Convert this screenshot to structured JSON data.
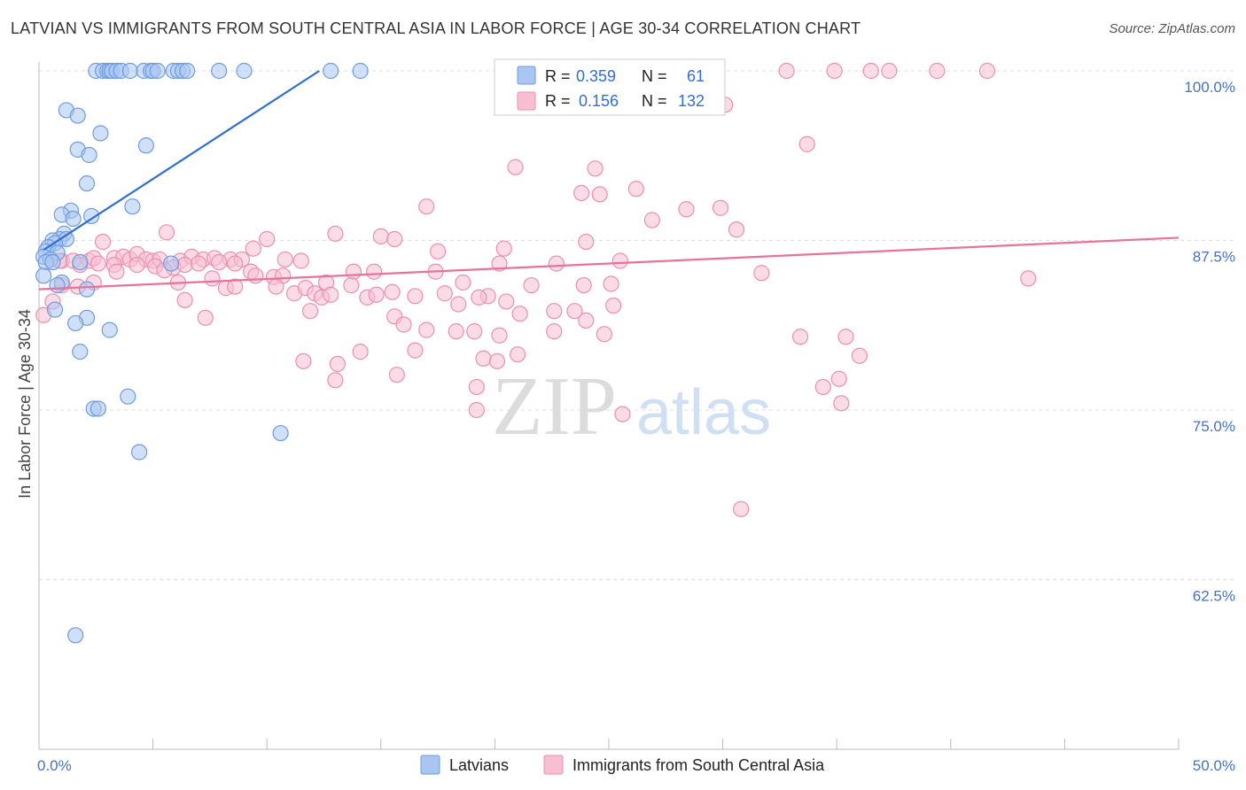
{
  "title": "LATVIAN VS IMMIGRANTS FROM SOUTH CENTRAL ASIA IN LABOR FORCE | AGE 30-34 CORRELATION CHART",
  "source": "Source: ZipAtlas.com",
  "watermark": {
    "zip": "ZIP",
    "atlas": "atlas"
  },
  "colors": {
    "blue_fill": "#a9c6f2",
    "blue_stroke": "#6f9be0",
    "blue_line": "#2e6fcf",
    "pink_fill": "#f7bfd1",
    "pink_stroke": "#ec8faf",
    "pink_line": "#e8729a",
    "tick_text": "#4472C4",
    "grid": "#dddddd"
  },
  "legend": {
    "rows": [
      {
        "r_label": "R =",
        "r_value": "0.359",
        "n_label": "N =",
        "n_value": "61"
      },
      {
        "r_label": "R =",
        "r_value": "0.156",
        "n_label": "N =",
        "n_value": "132"
      }
    ]
  },
  "bottom_legend": [
    "Latvians",
    "Immigrants from South Central Asia"
  ],
  "chart_data": {
    "type": "scatter",
    "title": "LATVIAN VS IMMIGRANTS FROM SOUTH CENTRAL ASIA IN LABOR FORCE | AGE 30-34 CORRELATION CHART",
    "xlabel": "",
    "ylabel": "In Labor Force | Age 30-34",
    "xlim": [
      0,
      50
    ],
    "ylim": [
      50,
      101
    ],
    "x_tick_labels": [
      "0.0%",
      "50.0%"
    ],
    "y_ticks": [
      62.5,
      75.0,
      87.5,
      100.0
    ],
    "y_tick_labels": [
      "62.5%",
      "75.0%",
      "87.5%",
      "100.0%"
    ],
    "grid": true,
    "series": [
      {
        "name": "Latvians",
        "R": 0.359,
        "N": 61,
        "trend": [
          [
            0.2,
            86.8
          ],
          [
            12.3,
            100.0
          ]
        ],
        "points": [
          [
            2.5,
            100
          ],
          [
            2.8,
            100
          ],
          [
            3.0,
            100
          ],
          [
            3.1,
            100
          ],
          [
            3.2,
            100
          ],
          [
            3.4,
            100
          ],
          [
            3.6,
            100
          ],
          [
            4.0,
            100
          ],
          [
            4.6,
            100
          ],
          [
            4.9,
            100
          ],
          [
            5.0,
            100
          ],
          [
            5.2,
            100
          ],
          [
            5.9,
            100
          ],
          [
            6.1,
            100
          ],
          [
            6.3,
            100
          ],
          [
            6.5,
            100
          ],
          [
            7.9,
            100
          ],
          [
            9.0,
            100
          ],
          [
            12.8,
            100
          ],
          [
            14.1,
            100
          ],
          [
            1.2,
            97.1
          ],
          [
            1.7,
            96.7
          ],
          [
            2.7,
            95.4
          ],
          [
            4.7,
            94.5
          ],
          [
            1.7,
            94.2
          ],
          [
            2.2,
            93.8
          ],
          [
            2.1,
            91.7
          ],
          [
            4.1,
            90.0
          ],
          [
            1.4,
            89.7
          ],
          [
            1.0,
            89.4
          ],
          [
            1.5,
            89.1
          ],
          [
            2.3,
            89.3
          ],
          [
            1.1,
            88.0
          ],
          [
            0.9,
            87.6
          ],
          [
            0.6,
            87.5
          ],
          [
            1.2,
            87.6
          ],
          [
            0.7,
            87.3
          ],
          [
            0.4,
            87.0
          ],
          [
            0.3,
            86.7
          ],
          [
            0.8,
            86.6
          ],
          [
            0.2,
            86.3
          ],
          [
            0.5,
            86.1
          ],
          [
            0.3,
            85.9
          ],
          [
            0.6,
            85.9
          ],
          [
            1.8,
            85.9
          ],
          [
            5.8,
            85.8
          ],
          [
            1.0,
            84.4
          ],
          [
            0.8,
            84.2
          ],
          [
            2.1,
            83.9
          ],
          [
            0.7,
            82.4
          ],
          [
            2.1,
            81.8
          ],
          [
            1.6,
            81.4
          ],
          [
            3.1,
            80.9
          ],
          [
            1.8,
            79.3
          ],
          [
            3.9,
            76.0
          ],
          [
            2.4,
            75.1
          ],
          [
            2.6,
            75.1
          ],
          [
            4.4,
            71.9
          ],
          [
            10.6,
            73.3
          ],
          [
            1.6,
            58.4
          ],
          [
            0.2,
            84.9
          ]
        ]
      },
      {
        "name": "Immigrants from South Central Asia",
        "R": 0.156,
        "N": 132,
        "trend": [
          [
            0.0,
            83.9
          ],
          [
            50.0,
            87.7
          ]
        ],
        "points": [
          [
            32.8,
            100
          ],
          [
            34.9,
            100
          ],
          [
            36.5,
            100
          ],
          [
            37.3,
            100
          ],
          [
            39.4,
            100
          ],
          [
            41.6,
            100
          ],
          [
            30.1,
            97.5
          ],
          [
            33.7,
            94.6
          ],
          [
            20.9,
            92.9
          ],
          [
            24.4,
            92.8
          ],
          [
            26.2,
            91.3
          ],
          [
            23.8,
            91.0
          ],
          [
            24.6,
            90.9
          ],
          [
            17.0,
            90.0
          ],
          [
            28.4,
            89.8
          ],
          [
            29.9,
            89.9
          ],
          [
            26.9,
            89.0
          ],
          [
            30.6,
            88.3
          ],
          [
            5.6,
            88.1
          ],
          [
            13.0,
            88.0
          ],
          [
            15.0,
            87.8
          ],
          [
            15.6,
            87.6
          ],
          [
            10.0,
            87.6
          ],
          [
            2.8,
            87.4
          ],
          [
            24.0,
            87.4
          ],
          [
            9.4,
            86.9
          ],
          [
            17.5,
            86.7
          ],
          [
            20.4,
            86.9
          ],
          [
            1.0,
            86.0
          ],
          [
            1.5,
            86.0
          ],
          [
            2.2,
            86.0
          ],
          [
            2.4,
            86.2
          ],
          [
            3.3,
            86.2
          ],
          [
            3.7,
            86.3
          ],
          [
            4.0,
            86.1
          ],
          [
            4.3,
            86.5
          ],
          [
            4.7,
            86.1
          ],
          [
            5.0,
            86.0
          ],
          [
            5.3,
            86.1
          ],
          [
            6.2,
            86.0
          ],
          [
            6.7,
            86.3
          ],
          [
            7.2,
            86.1
          ],
          [
            7.7,
            86.2
          ],
          [
            8.4,
            86.1
          ],
          [
            8.9,
            86.1
          ],
          [
            10.8,
            86.1
          ],
          [
            11.5,
            86.0
          ],
          [
            1.8,
            85.7
          ],
          [
            2.6,
            85.8
          ],
          [
            3.3,
            85.7
          ],
          [
            4.3,
            85.7
          ],
          [
            5.1,
            85.6
          ],
          [
            5.9,
            85.5
          ],
          [
            6.4,
            85.7
          ],
          [
            7.0,
            85.8
          ],
          [
            7.9,
            85.9
          ],
          [
            8.6,
            85.8
          ],
          [
            3.4,
            85.2
          ],
          [
            5.5,
            85.3
          ],
          [
            9.3,
            85.2
          ],
          [
            9.5,
            84.9
          ],
          [
            10.3,
            84.8
          ],
          [
            10.7,
            84.9
          ],
          [
            12.6,
            84.4
          ],
          [
            13.8,
            85.2
          ],
          [
            14.7,
            85.2
          ],
          [
            17.4,
            85.2
          ],
          [
            20.2,
            85.8
          ],
          [
            22.7,
            85.8
          ],
          [
            25.5,
            86.0
          ],
          [
            31.7,
            85.1
          ],
          [
            43.4,
            84.7
          ],
          [
            1.0,
            84.2
          ],
          [
            1.7,
            84.1
          ],
          [
            2.4,
            84.4
          ],
          [
            6.1,
            84.4
          ],
          [
            7.6,
            84.7
          ],
          [
            8.2,
            84.0
          ],
          [
            8.6,
            84.1
          ],
          [
            10.4,
            84.1
          ],
          [
            11.2,
            83.6
          ],
          [
            11.7,
            84.0
          ],
          [
            12.1,
            83.6
          ],
          [
            12.4,
            83.3
          ],
          [
            12.8,
            83.5
          ],
          [
            13.7,
            84.2
          ],
          [
            14.4,
            83.3
          ],
          [
            14.8,
            83.5
          ],
          [
            15.5,
            83.7
          ],
          [
            16.5,
            83.4
          ],
          [
            17.8,
            83.6
          ],
          [
            18.6,
            84.4
          ],
          [
            19.7,
            83.4
          ],
          [
            20.5,
            83.0
          ],
          [
            21.6,
            84.2
          ],
          [
            23.9,
            84.2
          ],
          [
            25.1,
            84.3
          ],
          [
            6.4,
            83.1
          ],
          [
            18.4,
            82.8
          ],
          [
            19.3,
            83.3
          ],
          [
            21.1,
            82.1
          ],
          [
            22.6,
            82.3
          ],
          [
            23.5,
            82.3
          ],
          [
            24.0,
            81.6
          ],
          [
            25.2,
            82.7
          ],
          [
            11.9,
            82.3
          ],
          [
            15.6,
            81.9
          ],
          [
            7.3,
            81.8
          ],
          [
            16.0,
            81.3
          ],
          [
            17.0,
            80.9
          ],
          [
            18.3,
            80.8
          ],
          [
            19.1,
            80.8
          ],
          [
            20.2,
            80.5
          ],
          [
            21.0,
            79.1
          ],
          [
            22.6,
            80.8
          ],
          [
            24.8,
            80.6
          ],
          [
            33.4,
            80.4
          ],
          [
            35.4,
            80.4
          ],
          [
            14.1,
            79.3
          ],
          [
            11.6,
            78.6
          ],
          [
            13.1,
            78.4
          ],
          [
            16.5,
            79.4
          ],
          [
            19.5,
            78.8
          ],
          [
            20.1,
            78.6
          ],
          [
            36.0,
            79.0
          ],
          [
            13.0,
            77.2
          ],
          [
            15.7,
            77.6
          ],
          [
            19.2,
            76.7
          ],
          [
            34.4,
            76.7
          ],
          [
            35.1,
            77.3
          ],
          [
            25.6,
            74.7
          ],
          [
            35.2,
            75.5
          ],
          [
            19.2,
            75.0
          ],
          [
            30.8,
            67.7
          ],
          [
            0.2,
            82.0
          ],
          [
            0.6,
            83.0
          ],
          [
            0.9,
            86.0
          ]
        ]
      }
    ]
  }
}
